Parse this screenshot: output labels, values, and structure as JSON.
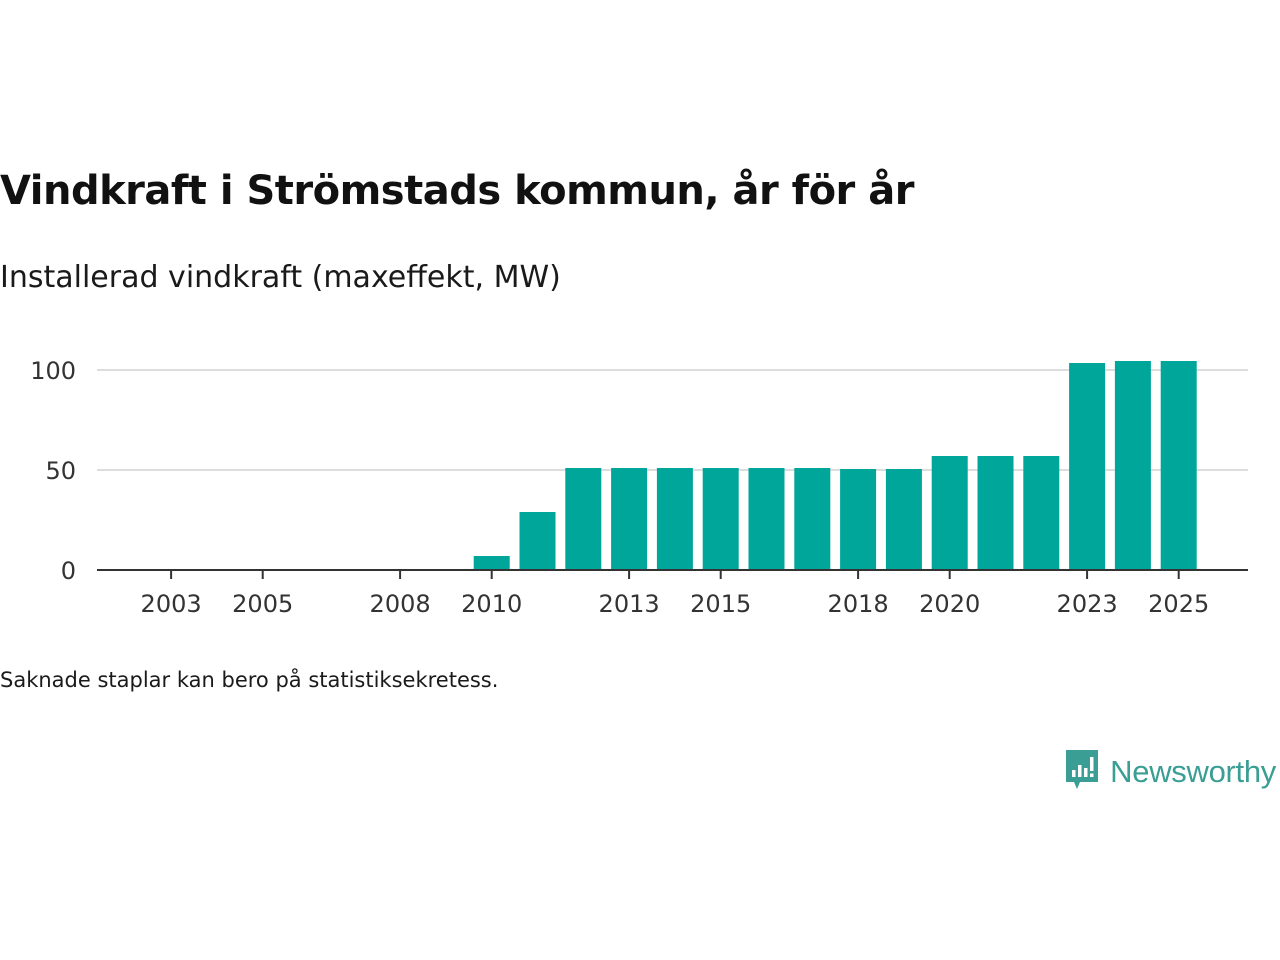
{
  "title": "Vindkraft i Strömstads kommun, år för år",
  "subtitle": "Installerad vindkraft (maxeffekt, MW)",
  "footnote": "Saknade staplar kan bero på statistiksekretess.",
  "brand": {
    "name": "Newsworthy",
    "icon": "newsworthy-logo-icon"
  },
  "colors": {
    "bar": "#00a69a",
    "grid": "#dddddd",
    "axis": "#333333",
    "brand": "#3a9e94"
  },
  "chart_data": {
    "type": "bar",
    "title": "Vindkraft i Strömstads kommun, år för år",
    "subtitle": "Installerad vindkraft (maxeffekt, MW)",
    "xlabel": "",
    "ylabel": "",
    "x": [
      2001,
      2002,
      2003,
      2004,
      2005,
      2006,
      2007,
      2008,
      2009,
      2010,
      2011,
      2012,
      2013,
      2014,
      2015,
      2016,
      2017,
      2018,
      2019,
      2020,
      2021,
      2022,
      2023,
      2024,
      2025
    ],
    "values": [
      0,
      0,
      0,
      0,
      0,
      0,
      0,
      0,
      0,
      7,
      29,
      51,
      51,
      51,
      51,
      51,
      51,
      50.5,
      50.5,
      57,
      57,
      57,
      103.5,
      104.5,
      104.5
    ],
    "xticks": [
      2003,
      2005,
      2008,
      2010,
      2013,
      2015,
      2018,
      2020,
      2023,
      2025
    ],
    "yticks": [
      0,
      50,
      100
    ],
    "ylim": [
      0,
      110
    ],
    "grid": true
  }
}
